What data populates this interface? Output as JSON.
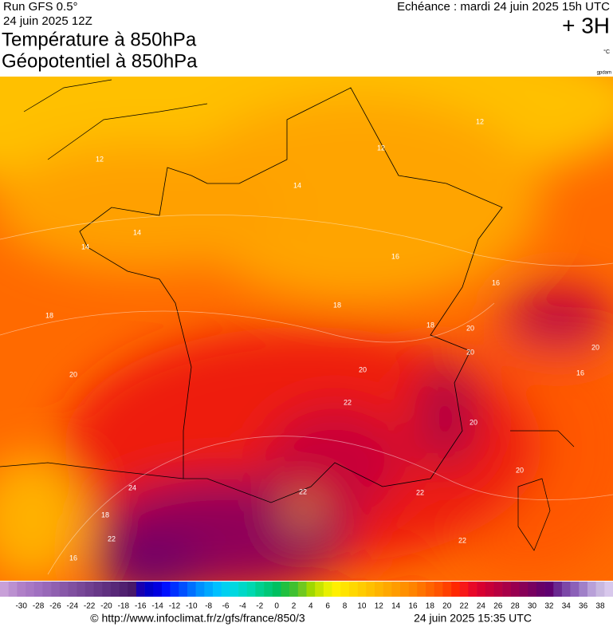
{
  "header": {
    "run": "Run GFS 0.5°",
    "date": "24 juin 2025 12Z",
    "title1": "Température à 850hPa",
    "title2": "Géopotentiel à 850hPa",
    "echeance": "Echéance : mardi 24 juin 2025 15h UTC",
    "offset": "+ 3H",
    "unit": "°C",
    "credit": "gpdam"
  },
  "map": {
    "contour_labels": [
      "12",
      "12",
      "12",
      "14",
      "14",
      "14",
      "16",
      "16",
      "16",
      "18",
      "18",
      "18",
      "18",
      "20",
      "20",
      "20",
      "20",
      "20",
      "20",
      "20",
      "22",
      "22",
      "22",
      "22",
      "22",
      "24",
      "16"
    ]
  },
  "colorbar": {
    "labels": [
      -30,
      -28,
      -26,
      -24,
      -22,
      -20,
      -18,
      -16,
      -14,
      -12,
      -10,
      -8,
      -6,
      -4,
      -2,
      0,
      2,
      4,
      6,
      8,
      10,
      12,
      14,
      16,
      18,
      20,
      22,
      24,
      26,
      28,
      30,
      32,
      34,
      36,
      38
    ],
    "colors": [
      "#c8a0d8",
      "#bb90d0",
      "#b080c8",
      "#a878c4",
      "#a070c0",
      "#9868b8",
      "#9060b0",
      "#8858a8",
      "#8050a0",
      "#784898",
      "#704090",
      "#683888",
      "#603080",
      "#582878",
      "#502070",
      "#481868",
      "#1800b0",
      "#0000c8",
      "#0000e0",
      "#0010ff",
      "#0030ff",
      "#0050ff",
      "#0070ff",
      "#0090ff",
      "#00a8ff",
      "#00c0ff",
      "#00d0f0",
      "#00d8e0",
      "#00d8c8",
      "#00d8b0",
      "#00d090",
      "#00c878",
      "#00c060",
      "#20c040",
      "#40c030",
      "#70c820",
      "#a0d800",
      "#c8e400",
      "#e8f000",
      "#fff000",
      "#ffe400",
      "#ffd800",
      "#ffcc00",
      "#ffc000",
      "#ffb400",
      "#ffa800",
      "#ff9c00",
      "#ff9000",
      "#ff8400",
      "#ff7400",
      "#ff6400",
      "#ff5400",
      "#ff4000",
      "#ff2800",
      "#f81818",
      "#e80828",
      "#d80030",
      "#c80038",
      "#b80040",
      "#a80048",
      "#980050",
      "#880058",
      "#780060",
      "#680068",
      "#600070",
      "#6a2890",
      "#7c48a8",
      "#8c60b8",
      "#a080c8",
      "#b8a0d8",
      "#c8b8e0",
      "#d8c8ec"
    ]
  },
  "footer": {
    "url": "© http://www.infoclimat.fr/z/gfs/france/850/3",
    "generated": "24 juin 2025 15:35 UTC"
  }
}
